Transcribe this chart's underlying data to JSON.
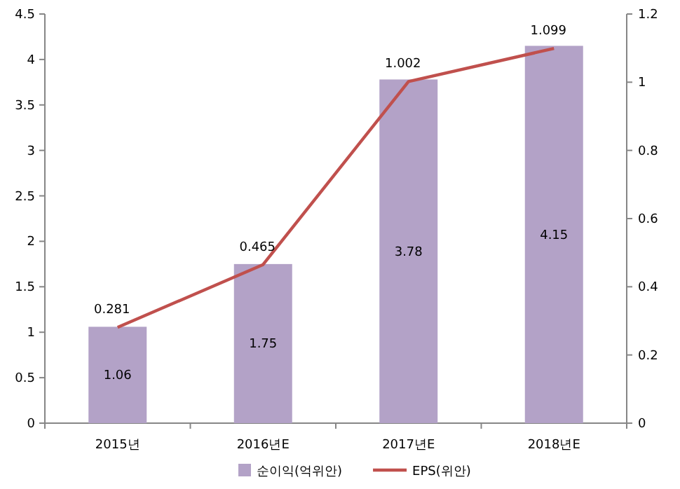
{
  "chart_data": {
    "type": "bar",
    "categories": [
      "2015년",
      "2016년E",
      "2017년E",
      "2018년E"
    ],
    "series": [
      {
        "name": "순이익(억위안)",
        "color": "#b3a2c7",
        "values": [
          1.06,
          1.75,
          3.78,
          4.15
        ]
      },
      {
        "name": "EPS(위안)",
        "type": "line",
        "axis": "y2",
        "color": "#c0504d",
        "values": [
          0.281,
          0.465,
          1.002,
          1.099
        ]
      }
    ],
    "ylim": [
      0,
      4.5
    ],
    "yticks": [
      0,
      0.5,
      1,
      1.5,
      2,
      2.5,
      3,
      3.5,
      4,
      4.5
    ],
    "y2lim": [
      0,
      1.2
    ],
    "y2ticks": [
      0,
      0.2,
      0.4,
      0.6,
      0.8,
      1,
      1.2
    ],
    "data_labels": true,
    "legend": "bottom"
  }
}
